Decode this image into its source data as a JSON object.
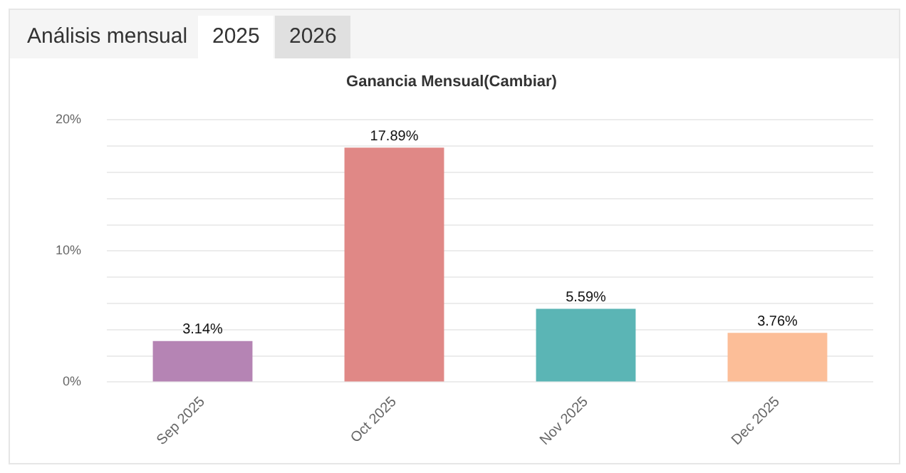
{
  "chart_data": {
    "type": "bar",
    "title": "Ganancia Mensual(Cambiar)",
    "annotations": [
      "Análisis mensual",
      "2025",
      "2026"
    ],
    "categories": [
      "Sep 2025",
      "Oct 2025",
      "Nov 2025",
      "Dec 2025"
    ],
    "values": [
      3.14,
      17.89,
      5.59,
      3.76
    ],
    "colors": [
      "#b584b4",
      "#e08886",
      "#5bb5b5",
      "#fcbe98"
    ],
    "value_labels": [
      "3.14%",
      "17.89%",
      "5.59%",
      "3.76%"
    ],
    "ylim": [
      0,
      20
    ],
    "yticks": [
      {
        "value": 0,
        "label": "0%"
      },
      {
        "value": 2,
        "label": null
      },
      {
        "value": 4,
        "label": null
      },
      {
        "value": 6,
        "label": null
      },
      {
        "value": 8,
        "label": null
      },
      {
        "value": 10,
        "label": "10%"
      },
      {
        "value": 12,
        "label": null
      },
      {
        "value": 14,
        "label": null
      },
      {
        "value": 16,
        "label": null
      },
      {
        "value": 18,
        "label": null
      },
      {
        "value": 20,
        "label": "20%"
      }
    ],
    "grid": "y",
    "legend": false
  }
}
